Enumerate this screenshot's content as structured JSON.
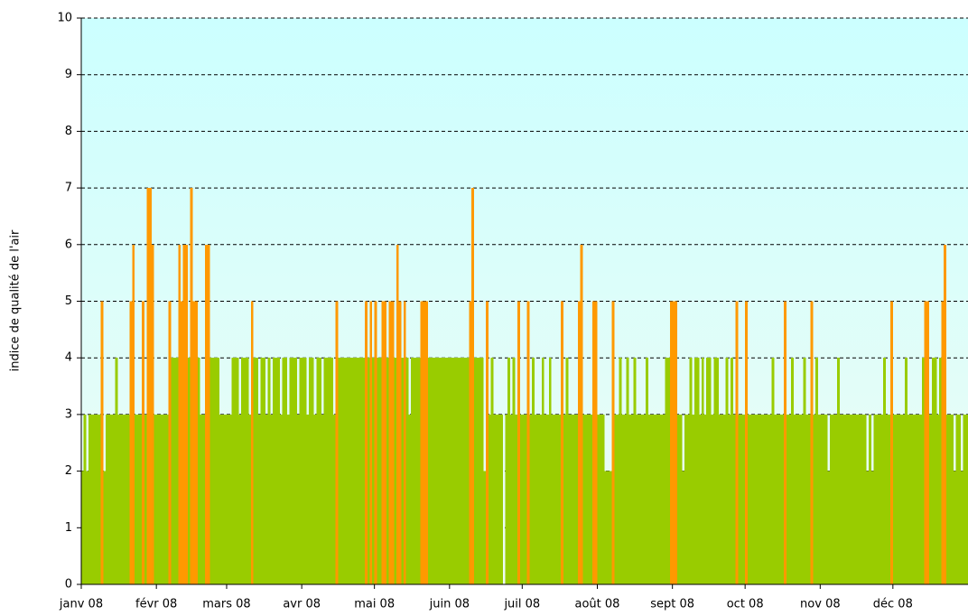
{
  "chart_data": {
    "type": "bar",
    "ylabel": "indice de qualité de l'air",
    "categories": [
      "janv 08",
      null,
      null,
      null,
      null,
      null,
      null,
      null,
      null,
      null,
      null,
      null,
      null,
      null,
      null,
      null,
      null,
      null,
      null,
      null,
      null,
      null,
      null,
      null,
      null,
      null,
      null,
      null,
      null,
      null,
      null,
      "févr 08",
      null,
      null,
      null,
      null,
      null,
      null,
      null,
      null,
      null,
      null,
      null,
      null,
      null,
      null,
      null,
      null,
      null,
      null,
      null,
      null,
      null,
      null,
      null,
      null,
      null,
      null,
      null,
      null,
      "mars 08",
      null,
      null,
      null,
      null,
      null,
      null,
      null,
      null,
      null,
      null,
      null,
      null,
      null,
      null,
      null,
      null,
      null,
      null,
      null,
      null,
      null,
      null,
      null,
      null,
      null,
      null,
      null,
      null,
      null,
      null,
      "avr 08",
      null,
      null,
      null,
      null,
      null,
      null,
      null,
      null,
      null,
      null,
      null,
      null,
      null,
      null,
      null,
      null,
      null,
      null,
      null,
      null,
      null,
      null,
      null,
      null,
      null,
      null,
      null,
      null,
      null,
      "mai 08",
      null,
      null,
      null,
      null,
      null,
      null,
      null,
      null,
      null,
      null,
      null,
      null,
      null,
      null,
      null,
      null,
      null,
      null,
      null,
      null,
      null,
      null,
      null,
      null,
      null,
      null,
      null,
      null,
      null,
      null,
      "juin 08",
      null,
      null,
      null,
      null,
      null,
      null,
      null,
      null,
      null,
      null,
      null,
      null,
      null,
      null,
      null,
      null,
      null,
      null,
      null,
      null,
      null,
      null,
      null,
      null,
      null,
      null,
      null,
      null,
      null,
      "juil 08",
      null,
      null,
      null,
      null,
      null,
      null,
      null,
      null,
      null,
      null,
      null,
      null,
      null,
      null,
      null,
      null,
      null,
      null,
      null,
      null,
      null,
      null,
      null,
      null,
      null,
      null,
      null,
      null,
      null,
      null,
      "août 08",
      null,
      null,
      null,
      null,
      null,
      null,
      null,
      null,
      null,
      null,
      null,
      null,
      null,
      null,
      null,
      null,
      null,
      null,
      null,
      null,
      null,
      null,
      null,
      null,
      null,
      null,
      null,
      null,
      null,
      null,
      "sept 08",
      null,
      null,
      null,
      null,
      null,
      null,
      null,
      null,
      null,
      null,
      null,
      null,
      null,
      null,
      null,
      null,
      null,
      null,
      null,
      null,
      null,
      null,
      null,
      null,
      null,
      null,
      null,
      null,
      null,
      "oct 08",
      null,
      null,
      null,
      null,
      null,
      null,
      null,
      null,
      null,
      null,
      null,
      null,
      null,
      null,
      null,
      null,
      null,
      null,
      null,
      null,
      null,
      null,
      null,
      null,
      null,
      null,
      null,
      null,
      null,
      null,
      "nov 08",
      null,
      null,
      null,
      null,
      null,
      null,
      null,
      null,
      null,
      null,
      null,
      null,
      null,
      null,
      null,
      null,
      null,
      null,
      null,
      null,
      null,
      null,
      null,
      null,
      null,
      null,
      null,
      null,
      null,
      "déc 08",
      null,
      null,
      null,
      null,
      null,
      null,
      null,
      null,
      null,
      null,
      null,
      null,
      null,
      null,
      null,
      null,
      null,
      null,
      null,
      null,
      null,
      null,
      null,
      null,
      null,
      null,
      null,
      null,
      null,
      null
    ],
    "series": [
      {
        "color": "#99cc00",
        "values": [
          2,
          3,
          2,
          3,
          3,
          3,
          3,
          3,
          null,
          2,
          3,
          3,
          3,
          3,
          4,
          3,
          3,
          3,
          3,
          3,
          null,
          null,
          3,
          3,
          3,
          null,
          3,
          null,
          null,
          null,
          3,
          3,
          3,
          3,
          3,
          3,
          null,
          4,
          4,
          4,
          null,
          null,
          null,
          null,
          4,
          null,
          null,
          null,
          4,
          3,
          3,
          null,
          null,
          4,
          4,
          4,
          4,
          3,
          3,
          3,
          3,
          3,
          4,
          4,
          4,
          3,
          4,
          4,
          4,
          3,
          null,
          4,
          4,
          3,
          4,
          4,
          3,
          4,
          3,
          4,
          4,
          4,
          3,
          4,
          4,
          3,
          4,
          4,
          4,
          3,
          4,
          4,
          4,
          3,
          4,
          4,
          3,
          4,
          4,
          3,
          4,
          4,
          4,
          4,
          3,
          null,
          4,
          4,
          4,
          4,
          4,
          4,
          4,
          4,
          4,
          4,
          4,
          null,
          4,
          null,
          4,
          null,
          4,
          4,
          null,
          null,
          4,
          null,
          null,
          4,
          null,
          null,
          4,
          null,
          4,
          3,
          4,
          4,
          4,
          4,
          null,
          null,
          null,
          4,
          4,
          4,
          4,
          4,
          4,
          4,
          4,
          4,
          4,
          4,
          4,
          4,
          4,
          4,
          4,
          4,
          null,
          null,
          4,
          4,
          4,
          4,
          2,
          null,
          3,
          4,
          3,
          3,
          3,
          3,
          null,
          3,
          4,
          3,
          4,
          3,
          null,
          3,
          3,
          3,
          null,
          3,
          4,
          3,
          3,
          3,
          4,
          3,
          3,
          4,
          3,
          3,
          3,
          3,
          null,
          3,
          4,
          3,
          3,
          3,
          3,
          null,
          null,
          3,
          3,
          3,
          3,
          null,
          null,
          3,
          3,
          3,
          2,
          2,
          2,
          null,
          3,
          3,
          4,
          3,
          3,
          4,
          3,
          3,
          4,
          3,
          3,
          3,
          3,
          4,
          3,
          3,
          3,
          3,
          3,
          3,
          3,
          4,
          4,
          null,
          null,
          null,
          3,
          3,
          2,
          3,
          3,
          4,
          3,
          4,
          4,
          3,
          4,
          3,
          4,
          4,
          3,
          4,
          4,
          3,
          3,
          3,
          4,
          3,
          4,
          3,
          null,
          3,
          3,
          3,
          null,
          3,
          3,
          3,
          3,
          3,
          3,
          3,
          3,
          3,
          3,
          4,
          3,
          3,
          3,
          3,
          null,
          3,
          3,
          4,
          3,
          3,
          3,
          3,
          4,
          3,
          3,
          null,
          3,
          4,
          3,
          3,
          3,
          3,
          2,
          3,
          3,
          3,
          4,
          3,
          3,
          3,
          3,
          3,
          3,
          3,
          3,
          3,
          3,
          3,
          2,
          3,
          2,
          3,
          3,
          3,
          3,
          4,
          3,
          3,
          null,
          3,
          3,
          3,
          3,
          3,
          4,
          3,
          3,
          3,
          3,
          3,
          3,
          4,
          null,
          null,
          3,
          4,
          4,
          3,
          4,
          null,
          null,
          3,
          3,
          3,
          2,
          3,
          3,
          2,
          3,
          3
        ]
      },
      {
        "color": "#ff9900",
        "values": [
          null,
          null,
          null,
          null,
          null,
          null,
          null,
          null,
          5,
          null,
          null,
          null,
          null,
          null,
          null,
          null,
          null,
          null,
          null,
          null,
          5,
          6,
          null,
          null,
          null,
          5,
          null,
          7,
          7,
          6,
          null,
          null,
          null,
          null,
          null,
          null,
          5,
          null,
          null,
          null,
          6,
          5,
          6,
          6,
          null,
          7,
          5,
          5,
          null,
          null,
          null,
          6,
          6,
          null,
          null,
          null,
          null,
          null,
          null,
          null,
          null,
          null,
          null,
          null,
          null,
          null,
          null,
          null,
          null,
          null,
          5,
          null,
          null,
          null,
          null,
          null,
          null,
          null,
          null,
          null,
          null,
          null,
          null,
          null,
          null,
          null,
          null,
          null,
          null,
          null,
          null,
          null,
          null,
          null,
          null,
          null,
          null,
          null,
          null,
          null,
          null,
          null,
          null,
          null,
          null,
          5,
          null,
          null,
          null,
          null,
          null,
          null,
          null,
          null,
          null,
          null,
          null,
          5,
          null,
          5,
          null,
          5,
          null,
          null,
          5,
          5,
          null,
          5,
          5,
          null,
          6,
          5,
          null,
          5,
          null,
          null,
          null,
          null,
          null,
          null,
          5,
          5,
          5,
          null,
          null,
          null,
          null,
          null,
          null,
          null,
          null,
          null,
          null,
          null,
          null,
          null,
          null,
          null,
          null,
          null,
          5,
          7,
          null,
          null,
          null,
          null,
          null,
          5,
          null,
          null,
          null,
          null,
          null,
          null,
          null,
          null,
          null,
          null,
          null,
          null,
          5,
          null,
          null,
          null,
          5,
          null,
          null,
          null,
          null,
          null,
          null,
          null,
          null,
          null,
          null,
          null,
          null,
          null,
          5,
          null,
          null,
          null,
          null,
          null,
          null,
          5,
          6,
          null,
          null,
          null,
          null,
          5,
          5,
          null,
          null,
          null,
          null,
          null,
          null,
          5,
          null,
          null,
          null,
          null,
          null,
          null,
          null,
          null,
          null,
          null,
          null,
          null,
          null,
          null,
          null,
          null,
          null,
          null,
          null,
          null,
          null,
          null,
          null,
          5,
          5,
          5,
          null,
          null,
          null,
          null,
          null,
          null,
          null,
          null,
          null,
          null,
          null,
          null,
          null,
          null,
          null,
          null,
          null,
          null,
          null,
          null,
          null,
          null,
          null,
          null,
          5,
          null,
          null,
          null,
          5,
          null,
          null,
          null,
          null,
          null,
          null,
          null,
          null,
          null,
          null,
          null,
          null,
          null,
          null,
          null,
          5,
          null,
          null,
          null,
          null,
          null,
          null,
          null,
          null,
          null,
          null,
          5,
          null,
          null,
          null,
          null,
          null,
          null,
          null,
          null,
          null,
          null,
          null,
          null,
          null,
          null,
          null,
          null,
          null,
          null,
          null,
          null,
          null,
          null,
          null,
          null,
          null,
          null,
          null,
          null,
          null,
          null,
          null,
          null,
          5,
          null,
          null,
          null,
          null,
          null,
          null,
          null,
          null,
          null,
          null,
          null,
          null,
          null,
          5,
          5,
          null,
          null,
          null,
          null,
          null,
          5,
          6,
          null,
          null,
          null,
          null,
          null,
          null,
          null,
          null,
          null
        ]
      }
    ],
    "ylim": [
      0,
      10
    ],
    "yticks": [
      0,
      1,
      2,
      3,
      4,
      5,
      6,
      7,
      8,
      9,
      10
    ],
    "grid": true
  }
}
